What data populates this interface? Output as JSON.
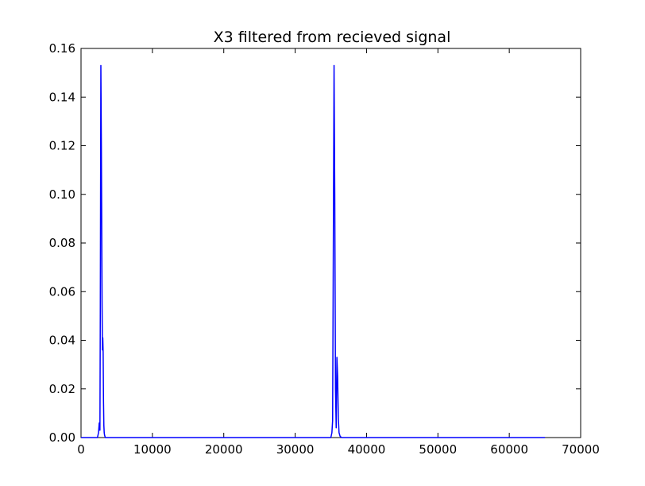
{
  "chart_data": {
    "type": "line",
    "title": "X3 filtered from recieved signal",
    "xlabel": "",
    "ylabel": "",
    "xlim": [
      0,
      70000
    ],
    "ylim": [
      0,
      0.16
    ],
    "x_ticks": [
      0,
      10000,
      20000,
      30000,
      40000,
      50000,
      60000,
      70000
    ],
    "x_tick_labels": [
      "0",
      "10000",
      "20000",
      "30000",
      "40000",
      "50000",
      "60000",
      "70000"
    ],
    "y_ticks": [
      0.0,
      0.02,
      0.04,
      0.06,
      0.08,
      0.1,
      0.12,
      0.14,
      0.16
    ],
    "y_tick_labels": [
      "0.00",
      "0.02",
      "0.04",
      "0.06",
      "0.08",
      "0.10",
      "0.12",
      "0.14",
      "0.16"
    ],
    "grid": false,
    "legend": "none",
    "series": [
      {
        "color": "#0000ff",
        "x": [
          0,
          2300,
          2450,
          2550,
          2650,
          2700,
          2780,
          2850,
          2950,
          3000,
          3050,
          3100,
          3150,
          3200,
          3250,
          3300,
          3350,
          3400,
          3600,
          3800,
          35000,
          35150,
          35250,
          35350,
          35450,
          35550,
          35650,
          35750,
          35850,
          35950,
          36050,
          36150,
          36300,
          36500,
          65000
        ],
        "y": [
          0,
          0,
          0.002,
          0.006,
          0.003,
          0.05,
          0.153,
          0.12,
          0.054,
          0.036,
          0.041,
          0.035,
          0.015,
          0.005,
          0.002,
          0.001,
          0.0005,
          0,
          0,
          0,
          0,
          0.002,
          0.007,
          0.08,
          0.153,
          0.1,
          0.02,
          0.004,
          0.033,
          0.025,
          0.008,
          0.002,
          0.0005,
          0,
          0
        ]
      }
    ]
  }
}
